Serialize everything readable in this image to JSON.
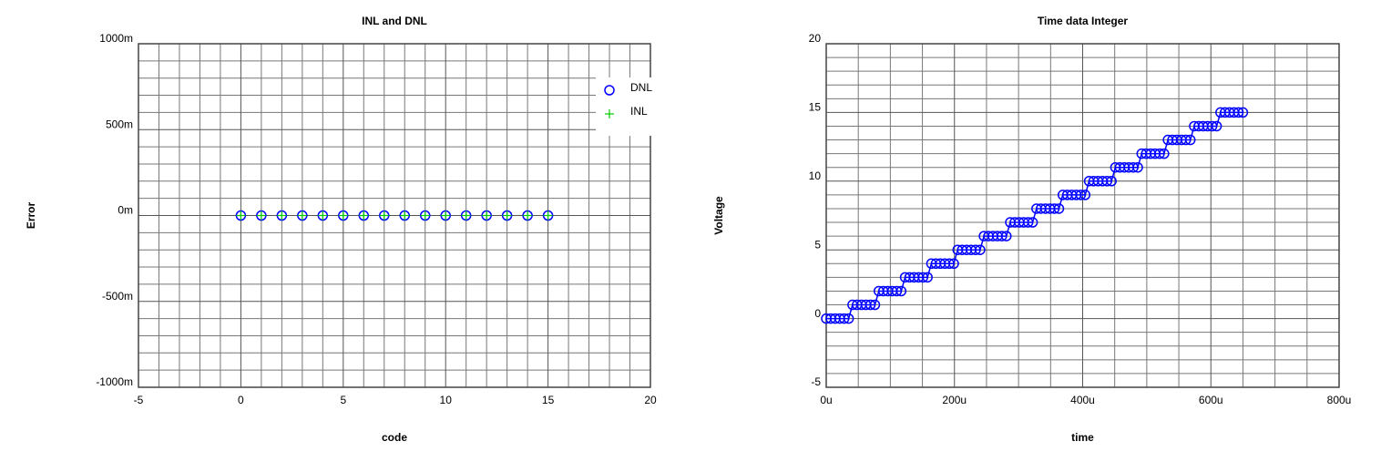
{
  "chart_data": [
    {
      "type": "scatter",
      "title": "INL and DNL",
      "xlabel": "code",
      "ylabel": "Error",
      "x": [
        0,
        1,
        2,
        3,
        4,
        5,
        6,
        7,
        8,
        9,
        10,
        11,
        12,
        13,
        14,
        15
      ],
      "series": [
        {
          "name": "DNL",
          "color": "#0000ff",
          "marker": "circle",
          "values": [
            0,
            0,
            0,
            0,
            0,
            0,
            0,
            0,
            0,
            0,
            0,
            0,
            0,
            0,
            0,
            0
          ]
        },
        {
          "name": "INL",
          "color": "#00cc00",
          "marker": "plus",
          "values": [
            0,
            0,
            0,
            0,
            0,
            0,
            0,
            0,
            0,
            0,
            0,
            0,
            0,
            0,
            0,
            0
          ]
        }
      ],
      "xlim": [
        -5,
        20
      ],
      "xticks": [
        -5,
        0,
        5,
        10,
        15,
        20
      ],
      "ylim": [
        -1,
        1
      ],
      "yticks": [
        {
          "value": -1,
          "label": "-1000m"
        },
        {
          "value": -0.5,
          "label": "-500m"
        },
        {
          "value": 0,
          "label": "0m"
        },
        {
          "value": 0.5,
          "label": "500m"
        },
        {
          "value": 1,
          "label": "1000m"
        }
      ],
      "grid": true,
      "legend": "upper right"
    },
    {
      "type": "line",
      "title": "Time data Integer",
      "xlabel": "time",
      "ylabel": "Voltage",
      "x": [
        0,
        7e-06,
        1.4e-05,
        2.1e-05,
        2.8e-05,
        3.5e-05,
        4.1e-05,
        4.8e-05,
        5.5e-05,
        6.2e-05,
        6.9e-05,
        7.6e-05,
        8.2e-05,
        8.9e-05,
        9.6e-05,
        0.000103,
        0.00011,
        0.000117,
        0.000123,
        0.00013,
        0.000137,
        0.000144,
        0.000151,
        0.000158,
        0.000164,
        0.000171,
        0.000178,
        0.000185,
        0.000192,
        0.000199,
        0.000205,
        0.000212,
        0.000219,
        0.000226,
        0.000233,
        0.00024,
        0.000246,
        0.000253,
        0.00026,
        0.000267,
        0.000274,
        0.000281,
        0.000287,
        0.000294,
        0.000301,
        0.000308,
        0.000315,
        0.000322,
        0.000328,
        0.000335,
        0.000342,
        0.000349,
        0.000356,
        0.000363,
        0.000369,
        0.000376,
        0.000383,
        0.00039,
        0.000397,
        0.000404,
        0.00041,
        0.000417,
        0.000424,
        0.000431,
        0.000438,
        0.000445,
        0.000451,
        0.000458,
        0.000465,
        0.000472,
        0.000479,
        0.000486,
        0.000492,
        0.000499,
        0.000506,
        0.000513,
        0.00052,
        0.000527,
        0.000533,
        0.00054,
        0.000547,
        0.000554,
        0.000561,
        0.000568,
        0.000574,
        0.000581,
        0.000588,
        0.000595,
        0.000602,
        0.000609,
        0.000615,
        0.000622,
        0.000629,
        0.000636,
        0.000643,
        0.00065
      ],
      "series": [
        {
          "color": "#0000ff",
          "marker": "circle",
          "values": [
            0,
            0,
            0,
            0,
            0,
            0,
            1,
            1,
            1,
            1,
            1,
            1,
            2,
            2,
            2,
            2,
            2,
            2,
            3,
            3,
            3,
            3,
            3,
            3,
            4,
            4,
            4,
            4,
            4,
            4,
            5,
            5,
            5,
            5,
            5,
            5,
            6,
            6,
            6,
            6,
            6,
            6,
            7,
            7,
            7,
            7,
            7,
            7,
            8,
            8,
            8,
            8,
            8,
            8,
            9,
            9,
            9,
            9,
            9,
            9,
            10,
            10,
            10,
            10,
            10,
            10,
            11,
            11,
            11,
            11,
            11,
            11,
            12,
            12,
            12,
            12,
            12,
            12,
            13,
            13,
            13,
            13,
            13,
            13,
            14,
            14,
            14,
            14,
            14,
            14,
            15,
            15,
            15,
            15,
            15,
            15
          ]
        }
      ],
      "xlim": [
        0,
        0.0008
      ],
      "xticks": [
        {
          "value": 0,
          "label": "0u"
        },
        {
          "value": 0.0002,
          "label": "200u"
        },
        {
          "value": 0.0004,
          "label": "400u"
        },
        {
          "value": 0.0006,
          "label": "600u"
        },
        {
          "value": 0.0008,
          "label": "800u"
        }
      ],
      "ylim": [
        -5,
        20
      ],
      "yticks": [
        -5,
        0,
        5,
        10,
        15,
        20
      ],
      "grid": true
    }
  ]
}
